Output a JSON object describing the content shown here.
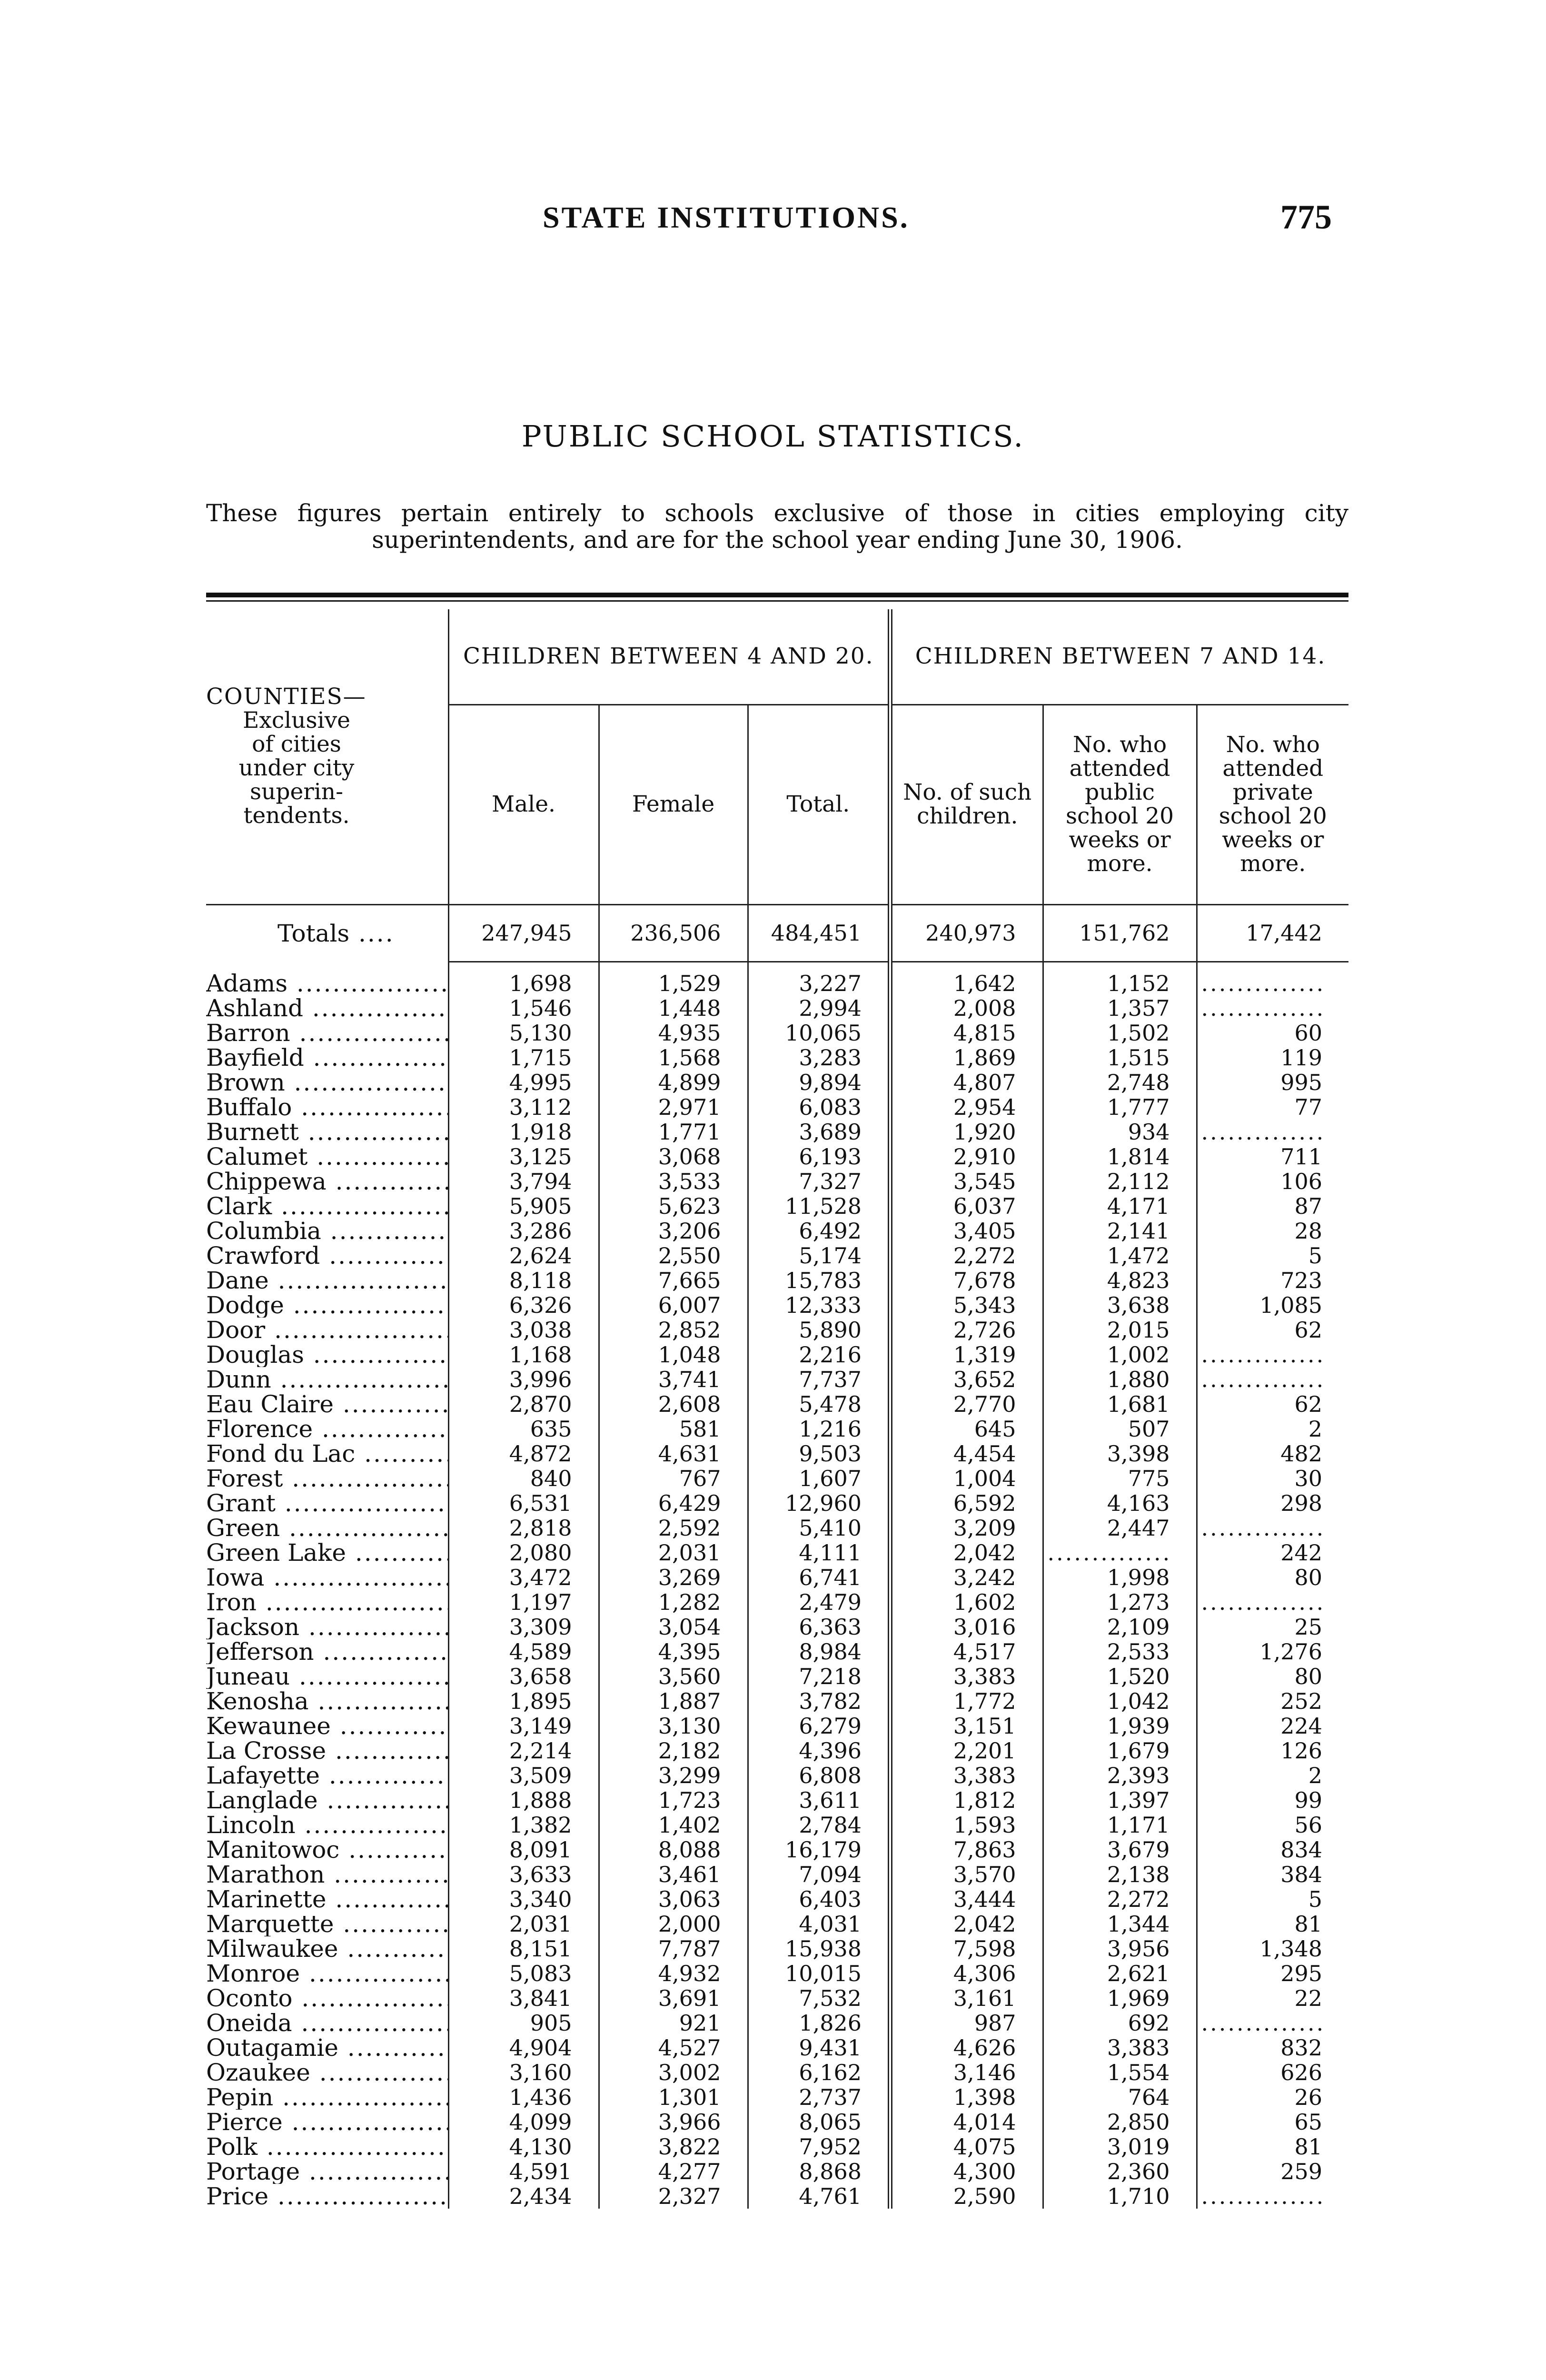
{
  "running_head": "STATE INSTITUTIONS.",
  "page_number": "775",
  "title": "PUBLIC SCHOOL STATISTICS.",
  "intro": "These figures pertain entirely to schools exclusive of those in cities employing city superintendents, and are for the school year ending June 30, 1906.",
  "header": {
    "counties": "COUNTIES—",
    "counties_sub": "Exclusive of cities under city superin- tendents.",
    "group1": "CHILDREN BETWEEN 4 AND 20.",
    "group2": "CHILDREN BETWEEN 7 AND 14.",
    "male": "Male.",
    "female": "Female",
    "total": "Total.",
    "no_such": "No. of such children.",
    "public": "No. who attended public school 20 weeks or more.",
    "private": "No. who attended private school 20 weeks or more."
  },
  "totals": {
    "label": "Totals",
    "values": [
      "247,945",
      "236,506",
      "484,451",
      "240,973",
      "151,762",
      "17,442"
    ]
  },
  "rows": [
    [
      "Adams",
      "1,698",
      "1,529",
      "3,227",
      "1,642",
      "1,152",
      ""
    ],
    [
      "Ashland",
      "1,546",
      "1,448",
      "2,994",
      "2,008",
      "1,357",
      ""
    ],
    [
      "Barron",
      "5,130",
      "4,935",
      "10,065",
      "4,815",
      "1,502",
      "60"
    ],
    [
      "Bayfield",
      "1,715",
      "1,568",
      "3,283",
      "1,869",
      "1,515",
      "119"
    ],
    [
      "Brown",
      "4,995",
      "4,899",
      "9,894",
      "4,807",
      "2,748",
      "995"
    ],
    [
      "Buffalo",
      "3,112",
      "2,971",
      "6,083",
      "2,954",
      "1,777",
      "77"
    ],
    [
      "Burnett",
      "1,918",
      "1,771",
      "3,689",
      "1,920",
      "934",
      ""
    ],
    [
      "Calumet",
      "3,125",
      "3,068",
      "6,193",
      "2,910",
      "1,814",
      "711"
    ],
    [
      "Chippewa",
      "3,794",
      "3,533",
      "7,327",
      "3,545",
      "2,112",
      "106"
    ],
    [
      "Clark",
      "5,905",
      "5,623",
      "11,528",
      "6,037",
      "4,171",
      "87"
    ],
    [
      "Columbia",
      "3,286",
      "3,206",
      "6,492",
      "3,405",
      "2,141",
      "28"
    ],
    [
      "Crawford",
      "2,624",
      "2,550",
      "5,174",
      "2,272",
      "1,472",
      "5"
    ],
    [
      "Dane",
      "8,118",
      "7,665",
      "15,783",
      "7,678",
      "4,823",
      "723"
    ],
    [
      "Dodge",
      "6,326",
      "6,007",
      "12,333",
      "5,343",
      "3,638",
      "1,085"
    ],
    [
      "Door",
      "3,038",
      "2,852",
      "5,890",
      "2,726",
      "2,015",
      "62"
    ],
    [
      "Douglas",
      "1,168",
      "1,048",
      "2,216",
      "1,319",
      "1,002",
      ""
    ],
    [
      "Dunn",
      "3,996",
      "3,741",
      "7,737",
      "3,652",
      "1,880",
      ""
    ],
    [
      "Eau Claire",
      "2,870",
      "2,608",
      "5,478",
      "2,770",
      "1,681",
      "62"
    ],
    [
      "Florence",
      "635",
      "581",
      "1,216",
      "645",
      "507",
      "2"
    ],
    [
      "Fond du Lac",
      "4,872",
      "4,631",
      "9,503",
      "4,454",
      "3,398",
      "482"
    ],
    [
      "Forest",
      "840",
      "767",
      "1,607",
      "1,004",
      "775",
      "30"
    ],
    [
      "Grant",
      "6,531",
      "6,429",
      "12,960",
      "6,592",
      "4,163",
      "298"
    ],
    [
      "Green",
      "2,818",
      "2,592",
      "5,410",
      "3,209",
      "2,447",
      ""
    ],
    [
      "Green Lake",
      "2,080",
      "2,031",
      "4,111",
      "2,042",
      "",
      "242"
    ],
    [
      "Iowa",
      "3,472",
      "3,269",
      "6,741",
      "3,242",
      "1,998",
      "80"
    ],
    [
      "Iron",
      "1,197",
      "1,282",
      "2,479",
      "1,602",
      "1,273",
      ""
    ],
    [
      "Jackson",
      "3,309",
      "3,054",
      "6,363",
      "3,016",
      "2,109",
      "25"
    ],
    [
      "Jefferson",
      "4,589",
      "4,395",
      "8,984",
      "4,517",
      "2,533",
      "1,276"
    ],
    [
      "Juneau",
      "3,658",
      "3,560",
      "7,218",
      "3,383",
      "1,520",
      "80"
    ],
    [
      "Kenosha",
      "1,895",
      "1,887",
      "3,782",
      "1,772",
      "1,042",
      "252"
    ],
    [
      "Kewaunee",
      "3,149",
      "3,130",
      "6,279",
      "3,151",
      "1,939",
      "224"
    ],
    [
      "La Crosse",
      "2,214",
      "2,182",
      "4,396",
      "2,201",
      "1,679",
      "126"
    ],
    [
      "Lafayette",
      "3,509",
      "3,299",
      "6,808",
      "3,383",
      "2,393",
      "2"
    ],
    [
      "Langlade",
      "1,888",
      "1,723",
      "3,611",
      "1,812",
      "1,397",
      "99"
    ],
    [
      "Lincoln",
      "1,382",
      "1,402",
      "2,784",
      "1,593",
      "1,171",
      "56"
    ],
    [
      "Manitowoc",
      "8,091",
      "8,088",
      "16,179",
      "7,863",
      "3,679",
      "834"
    ],
    [
      "Marathon",
      "3,633",
      "3,461",
      "7,094",
      "3,570",
      "2,138",
      "384"
    ],
    [
      "Marinette",
      "3,340",
      "3,063",
      "6,403",
      "3,444",
      "2,272",
      "5"
    ],
    [
      "Marquette",
      "2,031",
      "2,000",
      "4,031",
      "2,042",
      "1,344",
      "81"
    ],
    [
      "Milwaukee",
      "8,151",
      "7,787",
      "15,938",
      "7,598",
      "3,956",
      "1,348"
    ],
    [
      "Monroe",
      "5,083",
      "4,932",
      "10,015",
      "4,306",
      "2,621",
      "295"
    ],
    [
      "Oconto",
      "3,841",
      "3,691",
      "7,532",
      "3,161",
      "1,969",
      "22"
    ],
    [
      "Oneida",
      "905",
      "921",
      "1,826",
      "987",
      "692",
      ""
    ],
    [
      "Outagamie",
      "4,904",
      "4,527",
      "9,431",
      "4,626",
      "3,383",
      "832"
    ],
    [
      "Ozaukee",
      "3,160",
      "3,002",
      "6,162",
      "3,146",
      "1,554",
      "626"
    ],
    [
      "Pepin",
      "1,436",
      "1,301",
      "2,737",
      "1,398",
      "764",
      "26"
    ],
    [
      "Pierce",
      "4,099",
      "3,966",
      "8,065",
      "4,014",
      "2,850",
      "65"
    ],
    [
      "Polk",
      "4,130",
      "3,822",
      "7,952",
      "4,075",
      "3,019",
      "81"
    ],
    [
      "Portage",
      "4,591",
      "4,277",
      "8,868",
      "4,300",
      "2,360",
      "259"
    ],
    [
      "Price",
      "2,434",
      "2,327",
      "4,761",
      "2,590",
      "1,710",
      ""
    ]
  ]
}
